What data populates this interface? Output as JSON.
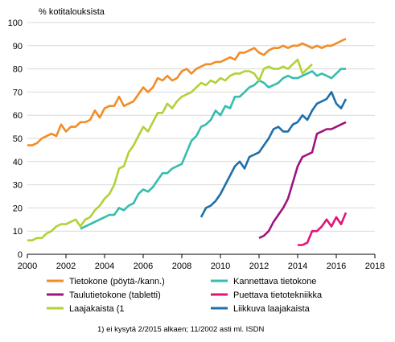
{
  "chart_data": {
    "type": "line",
    "ylabel": "% kotitalouksista",
    "xlim": [
      2000,
      2018
    ],
    "ylim": [
      0,
      100
    ],
    "x_ticks": [
      "2000",
      "2002",
      "2004",
      "2006",
      "2008",
      "2010",
      "2012",
      "2014",
      "2016",
      "2018"
    ],
    "y_ticks": [
      "0",
      "10",
      "20",
      "30",
      "40",
      "50",
      "60",
      "70",
      "80",
      "90",
      "100"
    ],
    "grid": "horizontal",
    "legend_position": "bottom",
    "footnote": "1) ei kysytä 2/2015  alkaen;  11/2002 asti ml.  ISDN",
    "series": [
      {
        "name": "Tietokone (pöytä-/kann.)",
        "color": "#F28C28",
        "x": [
          2000,
          2000.25,
          2000.5,
          2000.75,
          2001,
          2001.25,
          2001.5,
          2001.75,
          2002,
          2002.25,
          2002.5,
          2002.75,
          2003,
          2003.25,
          2003.5,
          2003.75,
          2004,
          2004.25,
          2004.5,
          2004.75,
          2005,
          2005.25,
          2005.5,
          2005.75,
          2006,
          2006.25,
          2006.5,
          2006.75,
          2007,
          2007.25,
          2007.5,
          2007.75,
          2008,
          2008.25,
          2008.5,
          2008.75,
          2009,
          2009.25,
          2009.5,
          2009.75,
          2010,
          2010.25,
          2010.5,
          2010.75,
          2011,
          2011.25,
          2011.5,
          2011.75,
          2012,
          2012.25,
          2012.5,
          2012.75,
          2013,
          2013.25,
          2013.5,
          2013.75,
          2014,
          2014.25,
          2014.5,
          2014.75,
          2015,
          2015.25,
          2015.5,
          2015.75,
          2016,
          2016.25,
          2016.5
        ],
        "values": [
          47,
          47,
          48,
          50,
          51,
          52,
          51,
          56,
          53,
          55,
          55,
          57,
          57,
          58,
          62,
          59,
          63,
          64,
          64,
          68,
          64,
          65,
          66,
          69,
          72,
          70,
          72,
          76,
          75,
          77,
          75,
          76,
          79,
          80,
          78,
          80,
          81,
          82,
          82,
          83,
          83,
          84,
          85,
          84,
          87,
          87,
          88,
          89,
          87,
          86,
          88,
          89,
          89,
          90,
          89,
          90,
          90,
          91,
          90,
          89,
          90,
          89,
          90,
          90,
          91,
          92,
          93
        ]
      },
      {
        "name": "Kannettava tietokone",
        "color": "#35BDAF",
        "x": [
          2002.75,
          2003,
          2003.25,
          2003.5,
          2003.75,
          2004,
          2004.25,
          2004.5,
          2004.75,
          2005,
          2005.25,
          2005.5,
          2005.75,
          2006,
          2006.25,
          2006.5,
          2006.75,
          2007,
          2007.25,
          2007.5,
          2007.75,
          2008,
          2008.25,
          2008.5,
          2008.75,
          2009,
          2009.25,
          2009.5,
          2009.75,
          2010,
          2010.25,
          2010.5,
          2010.75,
          2011,
          2011.25,
          2011.5,
          2011.75,
          2012,
          2012.25,
          2012.5,
          2012.75,
          2013,
          2013.25,
          2013.5,
          2013.75,
          2014,
          2014.25,
          2014.5,
          2014.75,
          2015,
          2015.25,
          2015.5,
          2015.75,
          2016,
          2016.25,
          2016.5
        ],
        "values": [
          11,
          12,
          13,
          14,
          15,
          16,
          17,
          17,
          20,
          19,
          21,
          22,
          26,
          28,
          27,
          29,
          32,
          35,
          35,
          37,
          38,
          39,
          44,
          49,
          51,
          55,
          56,
          58,
          62,
          60,
          64,
          63,
          68,
          68,
          70,
          72,
          73,
          75,
          74,
          72,
          73,
          74,
          76,
          77,
          76,
          76,
          77,
          78,
          79,
          77,
          78,
          77,
          76,
          78,
          80,
          80
        ]
      },
      {
        "name": "Taulutietokone (tabletti)",
        "color": "#A0137E",
        "x": [
          2012,
          2012.25,
          2012.5,
          2012.75,
          2013,
          2013.25,
          2013.5,
          2013.75,
          2014,
          2014.25,
          2014.5,
          2014.75,
          2015,
          2015.25,
          2015.5,
          2015.75,
          2016,
          2016.25,
          2016.5
        ],
        "values": [
          7,
          8,
          10,
          14,
          17,
          20,
          24,
          31,
          38,
          42,
          43,
          44,
          52,
          53,
          54,
          54,
          55,
          56,
          57
        ]
      },
      {
        "name": "Puettava tietotekniikka",
        "color": "#E0137A",
        "x": [
          2014,
          2014.25,
          2014.5,
          2014.75,
          2015,
          2015.25,
          2015.5,
          2015.75,
          2016,
          2016.25,
          2016.5
        ],
        "values": [
          4,
          4,
          5,
          10,
          10,
          12,
          15,
          12,
          16,
          13,
          18
        ]
      },
      {
        "name": "Laajakaista (1",
        "color": "#B0D236",
        "x": [
          2000,
          2000.25,
          2000.5,
          2000.75,
          2001,
          2001.25,
          2001.5,
          2001.75,
          2002,
          2002.25,
          2002.5,
          2002.75,
          2003,
          2003.25,
          2003.5,
          2003.75,
          2004,
          2004.25,
          2004.5,
          2004.75,
          2005,
          2005.25,
          2005.5,
          2005.75,
          2006,
          2006.25,
          2006.5,
          2006.75,
          2007,
          2007.25,
          2007.5,
          2007.75,
          2008,
          2008.25,
          2008.5,
          2008.75,
          2009,
          2009.25,
          2009.5,
          2009.75,
          2010,
          2010.25,
          2010.5,
          2010.75,
          2011,
          2011.25,
          2011.5,
          2011.75,
          2012,
          2012.25,
          2012.5,
          2012.75,
          2013,
          2013.25,
          2013.5,
          2013.75,
          2014,
          2014.25,
          2014.5,
          2014.75
        ],
        "values": [
          6,
          6,
          7,
          7,
          9,
          10,
          12,
          13,
          13,
          14,
          15,
          12,
          15,
          16,
          19,
          21,
          24,
          26,
          30,
          37,
          38,
          44,
          47,
          51,
          55,
          53,
          57,
          61,
          61,
          65,
          63,
          66,
          68,
          69,
          70,
          72,
          74,
          73,
          75,
          74,
          76,
          75,
          77,
          78,
          78,
          79,
          79,
          78,
          75,
          80,
          81,
          80,
          80,
          81,
          80,
          82,
          84,
          78,
          80,
          82
        ]
      },
      {
        "name": "Liikkuva laajakaista",
        "color": "#1F6FA8",
        "x": [
          2009,
          2009.25,
          2009.5,
          2009.75,
          2010,
          2010.25,
          2010.5,
          2010.75,
          2011,
          2011.25,
          2011.5,
          2011.75,
          2012,
          2012.25,
          2012.5,
          2012.75,
          2013,
          2013.25,
          2013.5,
          2013.75,
          2014,
          2014.25,
          2014.5,
          2014.75,
          2015,
          2015.25,
          2015.5,
          2015.75,
          2016,
          2016.25,
          2016.5
        ],
        "values": [
          16,
          20,
          21,
          23,
          26,
          30,
          34,
          38,
          40,
          37,
          42,
          43,
          44,
          47,
          50,
          54,
          55,
          53,
          53,
          56,
          57,
          60,
          58,
          62,
          65,
          66,
          67,
          70,
          65,
          63,
          67
        ]
      }
    ]
  }
}
